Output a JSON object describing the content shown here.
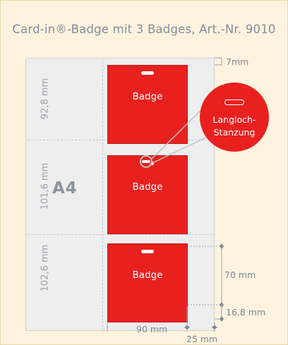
{
  "title": "Card-in®-Badge mit 3 Badges, Art.-Nr. 9010",
  "sheet": {
    "format_label": "A4"
  },
  "sections": [
    {
      "height_label": "92,8 mm"
    },
    {
      "height_label": "101,6 mm"
    },
    {
      "height_label": "102,6 mm"
    }
  ],
  "badges": [
    {
      "label": "Badge"
    },
    {
      "label": "Badge"
    },
    {
      "label": "Badge"
    }
  ],
  "callout": {
    "line1": "Langloch-",
    "line2": "Stanzung"
  },
  "dimensions": {
    "top_margin": "7mm",
    "badge_height": "70 mm",
    "bottom_margin": "16,8 mm",
    "badge_width": "90 mm",
    "side_margin": "25 mm"
  },
  "colors": {
    "background": "#fdf3df",
    "badge_red": "#e8211f",
    "sheet": "#eeeeee",
    "text_gray": "#858d9a"
  }
}
